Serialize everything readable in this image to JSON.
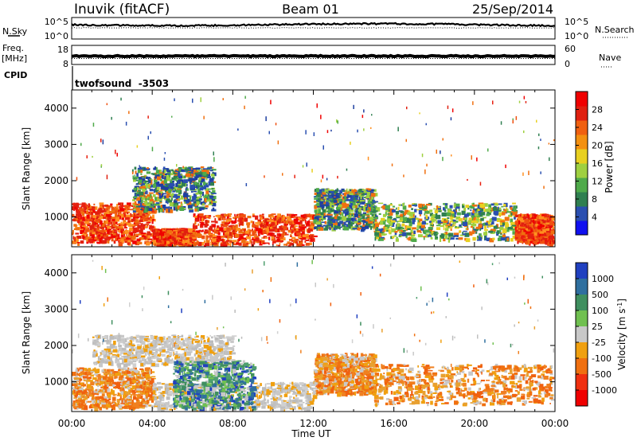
{
  "header": {
    "station": "Inuvik (fitACF)",
    "beam": "Beam 01",
    "date": "25/Sep/2014"
  },
  "top_panels": {
    "nsky": {
      "label": "N.Sky",
      "ticks": [
        "10^5",
        "10^0"
      ],
      "right_label": "N.Search",
      "right_ticks": [
        "10^5",
        "10^0"
      ]
    },
    "freq": {
      "label_lines": [
        "Freq.",
        "[MHz]"
      ],
      "ticks": [
        "18",
        "8"
      ],
      "right_label": "Nave",
      "right_ticks": [
        "60",
        "0"
      ]
    },
    "cpid": {
      "label": "CPID",
      "value": "twofsound  -3503"
    }
  },
  "chart_data": [
    {
      "type": "heatmap",
      "name": "power",
      "ylabel": "Slant Range [km]",
      "xlabel": "",
      "xlim": [
        "00:00",
        "00:00"
      ],
      "ylim": [
        180,
        4500
      ],
      "yticks": [
        1000,
        2000,
        3000,
        4000
      ],
      "colorbar": {
        "label": "Power [dB]",
        "ticks": [
          4,
          8,
          12,
          16,
          20,
          24,
          28
        ],
        "colors": [
          "#1010f0",
          "#2a4fb0",
          "#2f7f50",
          "#4faa4a",
          "#9fd040",
          "#e8d020",
          "#f39010",
          "#f06010",
          "#e02010",
          "#f00000"
        ]
      },
      "regions": [
        {
          "t": [
            0,
            4
          ],
          "r": [
            300,
            1400
          ],
          "level": "high"
        },
        {
          "t": [
            4,
            6
          ],
          "r": [
            200,
            700
          ],
          "level": "high"
        },
        {
          "t": [
            6,
            12
          ],
          "r": [
            200,
            1100
          ],
          "level": "high"
        },
        {
          "t": [
            3,
            7
          ],
          "r": [
            1200,
            2400
          ],
          "level": "medium"
        },
        {
          "t": [
            12,
            15
          ],
          "r": [
            700,
            1800
          ],
          "level": "medium"
        },
        {
          "t": [
            15,
            22
          ],
          "r": [
            400,
            1400
          ],
          "level": "low"
        },
        {
          "t": [
            22,
            24
          ],
          "r": [
            300,
            1100
          ],
          "level": "high"
        }
      ]
    },
    {
      "type": "heatmap",
      "name": "velocity",
      "ylabel": "Slant Range [km]",
      "xlabel": "Time UT",
      "xlim": [
        "00:00",
        "00:00"
      ],
      "xticks": [
        "00:00",
        "04:00",
        "08:00",
        "12:00",
        "16:00",
        "20:00",
        "00:00"
      ],
      "ylim": [
        180,
        4500
      ],
      "yticks": [
        1000,
        2000,
        3000,
        4000
      ],
      "colorbar": {
        "label": "Velocity [m s-1]",
        "ticks": [
          "1000",
          "500",
          "100",
          "25",
          "-25",
          "-100",
          "-500",
          "-1000"
        ],
        "colors": [
          "#2040c0",
          "#2f6f9f",
          "#3f8f5f",
          "#70c050",
          "#c8c8c8",
          "#f0a010",
          "#f07010",
          "#f03010",
          "#f00000"
        ]
      },
      "regions": [
        {
          "t": [
            0,
            4
          ],
          "r": [
            300,
            1400
          ],
          "level": "negative"
        },
        {
          "t": [
            1,
            8
          ],
          "r": [
            1500,
            2300
          ],
          "level": "near-zero"
        },
        {
          "t": [
            4,
            12
          ],
          "r": [
            200,
            1000
          ],
          "level": "near-zero"
        },
        {
          "t": [
            5,
            9
          ],
          "r": [
            300,
            1600
          ],
          "level": "positive"
        },
        {
          "t": [
            12,
            15
          ],
          "r": [
            700,
            1800
          ],
          "level": "negative"
        },
        {
          "t": [
            15,
            24
          ],
          "r": [
            400,
            1500
          ],
          "level": "negative"
        }
      ]
    }
  ]
}
